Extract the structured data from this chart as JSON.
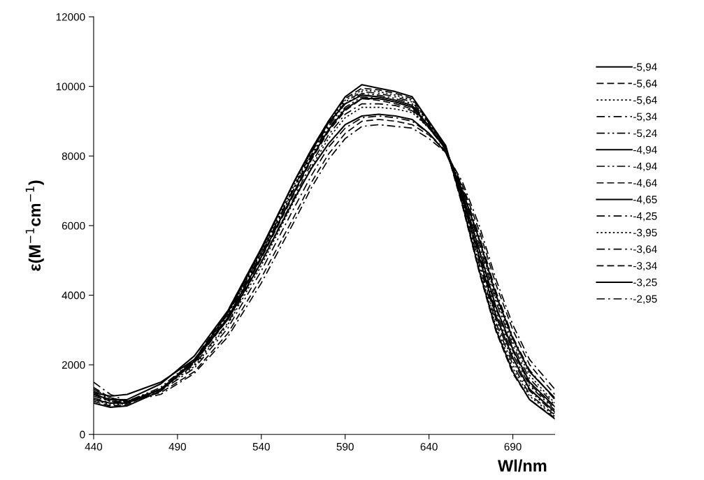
{
  "chart_data": {
    "type": "line",
    "xlabel": "Wl/nm",
    "ylabel": "ε(M$^{−1}$cm$^{−1}$)",
    "xlim": [
      440,
      715
    ],
    "xticks": [
      440,
      490,
      540,
      590,
      640,
      690
    ],
    "ylim": [
      0,
      12000
    ],
    "yticks": [
      0,
      2000,
      4000,
      6000,
      8000,
      10000,
      12000
    ],
    "grid": false,
    "legend": "right",
    "marker": "none",
    "x": [
      440,
      450,
      460,
      480,
      500,
      520,
      540,
      560,
      570,
      580,
      590,
      600,
      610,
      620,
      630,
      640,
      650,
      660,
      670,
      680,
      690,
      700,
      715
    ],
    "series": [
      {
        "name": "-5,94",
        "color": "#000000",
        "line_style": "solid",
        "values": [
          900,
          780,
          820,
          1250,
          2100,
          3500,
          5300,
          7300,
          8200,
          9000,
          9700,
          10050,
          9950,
          9850,
          9700,
          9000,
          8300,
          6600,
          4700,
          3000,
          1800,
          1000,
          450
        ]
      },
      {
        "name": "-5,64",
        "color": "#000000",
        "line_style": "dashed",
        "values": [
          950,
          820,
          860,
          1300,
          2150,
          3550,
          5350,
          7300,
          8200,
          9000,
          9650,
          9950,
          9900,
          9800,
          9650,
          8950,
          8250,
          6550,
          4650,
          2950,
          1750,
          1000,
          480
        ]
      },
      {
        "name": "-5,64",
        "color": "#000000",
        "line_style": "dotted",
        "values": [
          1000,
          850,
          880,
          1300,
          2100,
          3450,
          5250,
          7200,
          8150,
          8950,
          9600,
          9900,
          9850,
          9750,
          9600,
          8950,
          8250,
          6650,
          4800,
          3100,
          1900,
          1100,
          520
        ]
      },
      {
        "name": "-5,34",
        "color": "#000000",
        "line_style": "dashdot",
        "values": [
          1050,
          900,
          900,
          1300,
          2100,
          3400,
          5200,
          7150,
          8100,
          8900,
          9550,
          9850,
          9800,
          9700,
          9550,
          8950,
          8250,
          6700,
          4900,
          3200,
          2000,
          1150,
          560
        ]
      },
      {
        "name": "-5,24",
        "color": "#000000",
        "line_style": "dashdotdot",
        "values": [
          1100,
          950,
          920,
          1300,
          2050,
          3350,
          5150,
          7100,
          8050,
          8850,
          9500,
          9800,
          9750,
          9650,
          9500,
          8900,
          8250,
          6750,
          5000,
          3300,
          2100,
          1250,
          600
        ]
      },
      {
        "name": "-4,94",
        "color": "#000000",
        "line_style": "solid",
        "values": [
          1150,
          1000,
          1000,
          1450,
          2250,
          3550,
          5350,
          7300,
          8150,
          8950,
          9500,
          9750,
          9700,
          9600,
          9450,
          8850,
          8200,
          6800,
          5100,
          3400,
          2200,
          1300,
          650
        ]
      },
      {
        "name": "-4,94",
        "color": "#000000",
        "line_style": "dashdotdot",
        "values": [
          1200,
          950,
          950,
          1350,
          2150,
          3450,
          5200,
          7100,
          8000,
          8800,
          9400,
          9700,
          9650,
          9550,
          9400,
          8850,
          8200,
          6850,
          5200,
          3500,
          2300,
          1400,
          700
        ]
      },
      {
        "name": "-4,64",
        "color": "#000000",
        "line_style": "dashed",
        "values": [
          1150,
          950,
          920,
          1300,
          2050,
          3300,
          5050,
          6950,
          7900,
          8700,
          9300,
          9650,
          9600,
          9500,
          9350,
          8800,
          8200,
          6900,
          5300,
          3600,
          2400,
          1450,
          750
        ]
      },
      {
        "name": "-4,65",
        "color": "#000000",
        "line_style": "solid",
        "values": [
          1000,
          900,
          900,
          1300,
          2100,
          3350,
          5100,
          7000,
          7950,
          8750,
          9350,
          9650,
          9650,
          9550,
          9400,
          8850,
          8200,
          6900,
          5300,
          3650,
          2450,
          1500,
          800
        ]
      },
      {
        "name": "-4,25",
        "color": "#000000",
        "line_style": "dashdot",
        "values": [
          1250,
          1000,
          950,
          1300,
          2000,
          3200,
          4950,
          6850,
          7800,
          8600,
          9200,
          9500,
          9500,
          9450,
          9300,
          8800,
          8200,
          7000,
          5450,
          3800,
          2550,
          1600,
          850
        ]
      },
      {
        "name": "-3,95",
        "color": "#000000",
        "line_style": "dotted",
        "values": [
          1300,
          1000,
          950,
          1300,
          1950,
          3150,
          4850,
          6750,
          7700,
          8500,
          9100,
          9400,
          9400,
          9350,
          9250,
          8800,
          8200,
          7050,
          5550,
          3900,
          2650,
          1700,
          900
        ]
      },
      {
        "name": "-3,64",
        "color": "#000000",
        "line_style": "dashdot",
        "values": [
          1300,
          1050,
          950,
          1250,
          1900,
          3050,
          4700,
          6550,
          7450,
          8250,
          8800,
          9100,
          9150,
          9100,
          9000,
          8650,
          8150,
          7100,
          5700,
          4100,
          2800,
          1850,
          1000
        ]
      },
      {
        "name": "-3,34",
        "color": "#000000",
        "line_style": "dashed",
        "values": [
          1350,
          1050,
          950,
          1200,
          1800,
          2900,
          4500,
          6300,
          7250,
          8050,
          8650,
          9000,
          9050,
          9000,
          8900,
          8600,
          8150,
          7150,
          5850,
          4300,
          3000,
          2000,
          1150
        ]
      },
      {
        "name": "-3,25",
        "color": "#000000",
        "line_style": "solid",
        "values": [
          1200,
          1100,
          1150,
          1500,
          2150,
          3300,
          4950,
          6800,
          7650,
          8350,
          8900,
          9150,
          9200,
          9150,
          9050,
          8650,
          8100,
          7000,
          5600,
          4000,
          2750,
          1800,
          1050
        ]
      },
      {
        "name": "-2,95",
        "color": "#000000",
        "line_style": "dashdot",
        "values": [
          1500,
          1150,
          950,
          1150,
          1750,
          2800,
          4350,
          6150,
          7100,
          7900,
          8500,
          8850,
          8900,
          8850,
          8800,
          8500,
          8100,
          7250,
          6000,
          4450,
          3150,
          2150,
          1300
        ]
      }
    ]
  }
}
